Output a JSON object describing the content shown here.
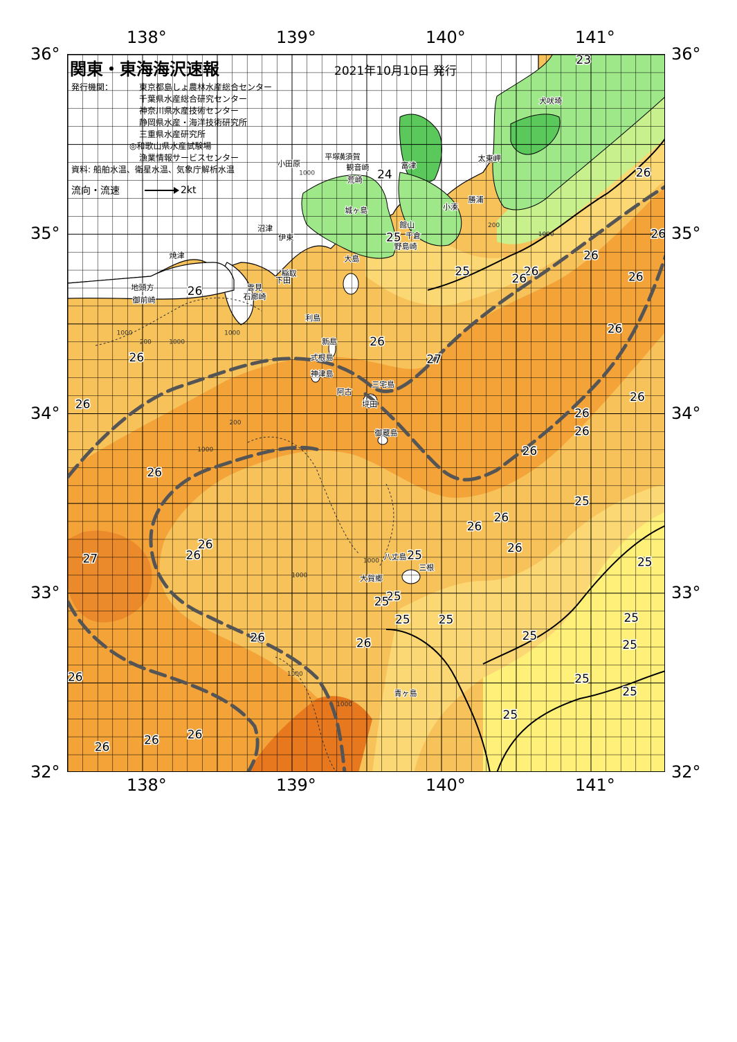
{
  "map": {
    "title": "関東・東海海沢速報",
    "issue_date": "2021年10月10日 発行",
    "publisher_label": "発行機関：",
    "publishers": [
      "東京都島しょ農林水産総合センター",
      "千葉県水産総合研究センター",
      "神奈川県水産技術センター",
      "静岡県水産・海洋技術研究所",
      "三重県水産研究所",
      "◎和歌山県水産試験場",
      "漁業情報サービスセンター"
    ],
    "data_source": "資料: 船舶水温、衛星水温、気象庁解析水温",
    "current_label": "流向・流速",
    "current_scale": "2kt",
    "lon_labels": [
      "138°",
      "139°",
      "140°",
      "141°"
    ],
    "lat_labels": [
      "36°",
      "35°",
      "34°",
      "33°",
      "32°"
    ],
    "colors": {
      "land_white": "#ffffff",
      "land_green_dark": "#5ac85a",
      "land_green_light": "#9ee88a",
      "sea_23_24": "#c8f08c",
      "sea_25": "#fff07a",
      "sea_25_5": "#fcd874",
      "sea_26": "#f7c25a",
      "sea_26_5": "#f3a338",
      "sea_27": "#e8781e",
      "kuroshio_axis": "#555555"
    },
    "temperature_labels": [
      {
        "text": "23",
        "lon": 140.95,
        "lat": 35.97
      },
      {
        "text": "24",
        "lon": 139.62,
        "lat": 35.33
      },
      {
        "text": "26",
        "lon": 141.35,
        "lat": 35.34
      },
      {
        "text": "26",
        "lon": 141.45,
        "lat": 35.0
      },
      {
        "text": "25",
        "lon": 139.68,
        "lat": 34.98
      },
      {
        "text": "26",
        "lon": 141.0,
        "lat": 34.88
      },
      {
        "text": "26",
        "lon": 140.6,
        "lat": 34.79
      },
      {
        "text": "26",
        "lon": 140.52,
        "lat": 34.75
      },
      {
        "text": "26",
        "lon": 141.3,
        "lat": 34.76
      },
      {
        "text": "25",
        "lon": 140.14,
        "lat": 34.79
      },
      {
        "text": "26",
        "lon": 138.35,
        "lat": 34.68
      },
      {
        "text": "26",
        "lon": 139.57,
        "lat": 34.4
      },
      {
        "text": "27",
        "lon": 139.95,
        "lat": 34.3
      },
      {
        "text": "26",
        "lon": 141.16,
        "lat": 34.47
      },
      {
        "text": "26",
        "lon": 137.96,
        "lat": 34.31
      },
      {
        "text": "26",
        "lon": 141.31,
        "lat": 34.09
      },
      {
        "text": "26",
        "lon": 137.6,
        "lat": 34.05
      },
      {
        "text": "26",
        "lon": 140.94,
        "lat": 34.0
      },
      {
        "text": "26",
        "lon": 140.94,
        "lat": 33.9
      },
      {
        "text": "26",
        "lon": 140.59,
        "lat": 33.79
      },
      {
        "text": "26",
        "lon": 138.08,
        "lat": 33.67
      },
      {
        "text": "25",
        "lon": 140.94,
        "lat": 33.51
      },
      {
        "text": "26",
        "lon": 140.4,
        "lat": 33.42
      },
      {
        "text": "26",
        "lon": 140.22,
        "lat": 33.37
      },
      {
        "text": "26",
        "lon": 138.42,
        "lat": 33.27
      },
      {
        "text": "26",
        "lon": 138.34,
        "lat": 33.21
      },
      {
        "text": "26",
        "lon": 140.49,
        "lat": 33.25
      },
      {
        "text": "27",
        "lon": 137.65,
        "lat": 33.19
      },
      {
        "text": "25",
        "lon": 139.82,
        "lat": 33.21
      },
      {
        "text": "25",
        "lon": 141.36,
        "lat": 33.17
      },
      {
        "text": "25",
        "lon": 139.68,
        "lat": 32.98
      },
      {
        "text": "25",
        "lon": 139.6,
        "lat": 32.95
      },
      {
        "text": "25",
        "lon": 139.74,
        "lat": 32.85
      },
      {
        "text": "25",
        "lon": 140.03,
        "lat": 32.85
      },
      {
        "text": "25",
        "lon": 141.27,
        "lat": 32.86
      },
      {
        "text": "26",
        "lon": 138.77,
        "lat": 32.75
      },
      {
        "text": "25",
        "lon": 140.59,
        "lat": 32.76
      },
      {
        "text": "26",
        "lon": 139.48,
        "lat": 32.72
      },
      {
        "text": "25",
        "lon": 141.26,
        "lat": 32.71
      },
      {
        "text": "26",
        "lon": 137.55,
        "lat": 32.53
      },
      {
        "text": "25",
        "lon": 140.94,
        "lat": 32.52
      },
      {
        "text": "25",
        "lon": 141.26,
        "lat": 32.45
      },
      {
        "text": "25",
        "lon": 140.46,
        "lat": 32.32
      },
      {
        "text": "26",
        "lon": 138.35,
        "lat": 32.21
      },
      {
        "text": "26",
        "lon": 138.06,
        "lat": 32.18
      },
      {
        "text": "26",
        "lon": 137.73,
        "lat": 32.14
      }
    ],
    "place_names": [
      {
        "text": "犬吠埼",
        "lon": 140.73,
        "lat": 35.74
      },
      {
        "text": "太東岬",
        "lon": 140.32,
        "lat": 35.42
      },
      {
        "text": "勝浦",
        "lon": 140.23,
        "lat": 35.19
      },
      {
        "text": "小湊",
        "lon": 140.06,
        "lat": 35.15
      },
      {
        "text": "富津",
        "lon": 139.78,
        "lat": 35.38
      },
      {
        "text": "横須賀",
        "lon": 139.38,
        "lat": 35.43
      },
      {
        "text": "観音崎",
        "lon": 139.44,
        "lat": 35.37
      },
      {
        "text": "平塚",
        "lon": 139.27,
        "lat": 35.43
      },
      {
        "text": "小田原",
        "lon": 138.98,
        "lat": 35.39
      },
      {
        "text": "荒崎",
        "lon": 139.42,
        "lat": 35.3
      },
      {
        "text": "城ヶ島",
        "lon": 139.43,
        "lat": 35.13
      },
      {
        "text": "館山",
        "lon": 139.77,
        "lat": 35.05
      },
      {
        "text": "千倉",
        "lon": 139.81,
        "lat": 34.99
      },
      {
        "text": "野島崎",
        "lon": 139.76,
        "lat": 34.93
      },
      {
        "text": "沼津",
        "lon": 138.82,
        "lat": 35.03
      },
      {
        "text": "伊東",
        "lon": 138.96,
        "lat": 34.98
      },
      {
        "text": "焼津",
        "lon": 138.23,
        "lat": 34.88
      },
      {
        "text": "大島",
        "lon": 139.4,
        "lat": 34.86
      },
      {
        "text": "稲取",
        "lon": 138.98,
        "lat": 34.78
      },
      {
        "text": "下田",
        "lon": 138.94,
        "lat": 34.74
      },
      {
        "text": "雲見",
        "lon": 138.75,
        "lat": 34.7
      },
      {
        "text": "石廊崎",
        "lon": 138.75,
        "lat": 34.65
      },
      {
        "text": "地頭方",
        "lon": 138.0,
        "lat": 34.7
      },
      {
        "text": "御前崎",
        "lon": 138.01,
        "lat": 34.63
      },
      {
        "text": "利島",
        "lon": 139.14,
        "lat": 34.53
      },
      {
        "text": "新島",
        "lon": 139.25,
        "lat": 34.4
      },
      {
        "text": "式根島",
        "lon": 139.2,
        "lat": 34.31
      },
      {
        "text": "神津島",
        "lon": 139.2,
        "lat": 34.22
      },
      {
        "text": "三宅島",
        "lon": 139.61,
        "lat": 34.16
      },
      {
        "text": "阿古",
        "lon": 139.35,
        "lat": 34.12
      },
      {
        "text": "坪田",
        "lon": 139.52,
        "lat": 34.05
      },
      {
        "text": "御蔵島",
        "lon": 139.63,
        "lat": 33.89
      },
      {
        "text": "八丈島",
        "lon": 139.69,
        "lat": 33.2
      },
      {
        "text": "三根",
        "lon": 139.9,
        "lat": 33.14
      },
      {
        "text": "大賀郷",
        "lon": 139.53,
        "lat": 33.08
      },
      {
        "text": "青ヶ島",
        "lon": 139.76,
        "lat": 32.44
      }
    ],
    "depth_labels": [
      {
        "text": "1000",
        "lon": 137.88,
        "lat": 34.45
      },
      {
        "text": "200",
        "lon": 138.02,
        "lat": 34.4
      },
      {
        "text": "1000",
        "lon": 138.23,
        "lat": 34.4
      },
      {
        "text": "1000",
        "lon": 138.6,
        "lat": 34.45
      },
      {
        "text": "200",
        "lon": 138.62,
        "lat": 33.95
      },
      {
        "text": "1000",
        "lon": 138.42,
        "lat": 33.8
      },
      {
        "text": "200",
        "lon": 140.35,
        "lat": 35.05
      },
      {
        "text": "1000",
        "lon": 140.7,
        "lat": 35.0
      },
      {
        "text": "1000",
        "lon": 139.05,
        "lat": 33.1
      },
      {
        "text": "1000",
        "lon": 139.53,
        "lat": 33.18
      },
      {
        "text": "1000",
        "lon": 139.02,
        "lat": 32.55
      },
      {
        "text": "1000",
        "lon": 139.35,
        "lat": 32.38
      },
      {
        "text": "1000",
        "lon": 139.1,
        "lat": 35.34
      }
    ]
  }
}
